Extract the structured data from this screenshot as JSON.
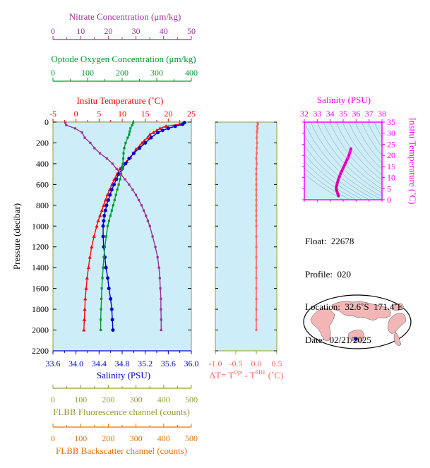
{
  "info": {
    "float_label": "Float:",
    "float_value": "22678",
    "profile_label": "Profile:",
    "profile_value": "020",
    "location_label": "Location:",
    "location_value": "32.6˚S  171.4˚E",
    "date_label": "Date:",
    "date_value": "02/21/2025"
  },
  "colors": {
    "temperature": "#ff0000",
    "salinity": "#0000cc",
    "oxygen": "#009933",
    "nitrate": "#993399",
    "fluorescence": "#999933",
    "backscatter": "#e67300",
    "delta_t": "#ff6666",
    "ts": "#ff00ff",
    "panel_bg": "#cdeef8"
  },
  "chart_data": [
    {
      "type": "line",
      "title": "",
      "ylabel": "Pressure (decibar)",
      "ylim": [
        2200,
        0
      ],
      "yticks": [
        0,
        200,
        400,
        600,
        800,
        1000,
        1200,
        1400,
        1600,
        1800,
        2000,
        2200
      ],
      "axes": {
        "nitrate": {
          "label": "Nitrate Concentration (μm/kg)",
          "range": [
            0,
            50
          ],
          "ticks": [
            0,
            10,
            20,
            30,
            40,
            50
          ]
        },
        "oxygen": {
          "label": "Optode Oxygen Concentration (μm/kg)",
          "range": [
            0,
            400
          ],
          "ticks": [
            0,
            100,
            200,
            300,
            400
          ]
        },
        "temperature": {
          "label": "Insitu Temperature (˚C)",
          "range": [
            -5,
            25
          ],
          "ticks": [
            -5,
            0,
            5,
            10,
            15,
            20,
            25
          ]
        },
        "salinity": {
          "label": "Salinity (PSU)",
          "range": [
            33.6,
            36.0
          ],
          "ticks": [
            "33.6",
            "34.0",
            "34.4",
            "34.8",
            "35.2",
            "35.6",
            "36.0"
          ]
        },
        "fluorescence": {
          "label": "FLBB Fluorescence channel (counts)",
          "range": [
            0,
            500
          ],
          "ticks": [
            0,
            100,
            200,
            300,
            400,
            500
          ]
        },
        "backscatter": {
          "label": "FLBB Backscatter channel (counts)",
          "range": [
            0,
            500
          ],
          "ticks": [
            0,
            100,
            200,
            300,
            400,
            500
          ]
        }
      },
      "series": [
        {
          "name": "Insitu Temperature",
          "axis": "temperature",
          "pressure": [
            5,
            20,
            40,
            60,
            80,
            100,
            120,
            150,
            180,
            200,
            230,
            260,
            300,
            340,
            380,
            400,
            450,
            500,
            550,
            600,
            650,
            700,
            750,
            800,
            850,
            900,
            950,
            1000,
            1100,
            1200,
            1300,
            1400,
            1500,
            1600,
            1700,
            1800,
            1900,
            2000
          ],
          "values": [
            23.5,
            22.5,
            19.5,
            18.2,
            17.5,
            16.8,
            16.0,
            15.5,
            14.8,
            14.3,
            13.8,
            13.0,
            12.5,
            11.8,
            11.0,
            10.3,
            9.5,
            8.9,
            8.3,
            7.8,
            7.3,
            6.8,
            6.4,
            6.0,
            5.6,
            5.2,
            4.8,
            4.5,
            3.9,
            3.4,
            3.0,
            2.7,
            2.4,
            2.2,
            2.0,
            1.9,
            1.8,
            1.7
          ]
        },
        {
          "name": "Salinity",
          "axis": "salinity",
          "pressure": [
            5,
            20,
            40,
            60,
            80,
            100,
            150,
            200,
            250,
            300,
            350,
            400,
            450,
            500,
            550,
            600,
            650,
            700,
            750,
            800,
            850,
            900,
            950,
            1000,
            1100,
            1200,
            1300,
            1400,
            1500,
            1600,
            1700,
            1800,
            1900,
            2000
          ],
          "values": [
            35.88,
            35.85,
            35.72,
            35.6,
            35.5,
            35.42,
            35.3,
            35.2,
            35.1,
            35.0,
            34.92,
            34.86,
            34.8,
            34.74,
            34.7,
            34.66,
            34.62,
            34.59,
            34.56,
            34.53,
            34.51,
            34.49,
            34.48,
            34.47,
            34.47,
            34.48,
            34.5,
            34.52,
            34.55,
            34.57,
            34.6,
            34.62,
            34.63,
            34.64
          ]
        },
        {
          "name": "Optode Oxygen",
          "axis": "oxygen",
          "pressure": [
            5,
            30,
            60,
            90,
            120,
            150,
            200,
            250,
            300,
            350,
            400,
            450,
            500,
            550,
            600,
            650,
            700,
            750,
            800,
            850,
            900,
            950,
            1000,
            1100,
            1200,
            1300,
            1400,
            1500,
            1600,
            1700,
            1800,
            1900,
            2000
          ],
          "values": [
            232,
            229,
            224,
            222,
            220,
            216,
            210,
            206,
            204,
            203,
            202,
            200,
            197,
            194,
            190,
            186,
            182,
            178,
            174,
            170,
            166,
            162,
            158,
            154,
            150,
            147,
            145,
            143,
            141,
            140,
            139,
            138,
            138
          ]
        },
        {
          "name": "Nitrate",
          "axis": "nitrate",
          "pressure": [
            5,
            30,
            60,
            100,
            150,
            200,
            250,
            300,
            350,
            400,
            450,
            500,
            550,
            600,
            650,
            700,
            750,
            800,
            850,
            900,
            950,
            1000,
            1100,
            1200,
            1300,
            1400,
            1500,
            1600,
            1700,
            1800,
            1900,
            2000
          ],
          "values": [
            4.5,
            4.8,
            8.0,
            10.5,
            11.5,
            13.5,
            15.0,
            17.0,
            19.5,
            21.5,
            23.0,
            24.5,
            26.0,
            27.5,
            28.8,
            30.0,
            31.0,
            32.0,
            32.8,
            33.6,
            34.3,
            35.0,
            36.0,
            37.0,
            37.8,
            38.3,
            38.6,
            38.8,
            39.0,
            39.0,
            39.1,
            39.1
          ]
        }
      ]
    },
    {
      "type": "line",
      "title": "",
      "xlabel": "ΔT= T",
      "xlabel_sup1": "Opt",
      "xlabel_mid": " - T",
      "xlabel_sup2": "SBE",
      "xlabel_unit": " (˚C)",
      "xlim": [
        -1.0,
        0.5
      ],
      "xticks": [
        "-1.0",
        "-0.5",
        "0.0",
        "0.5"
      ],
      "ylim": [
        2200,
        0
      ],
      "series": [
        {
          "name": "ΔT",
          "pressure": [
            5,
            20,
            40,
            60,
            80,
            100,
            150,
            200,
            250,
            300,
            350,
            400,
            450,
            500,
            550,
            600,
            650,
            700,
            750,
            800,
            850,
            900,
            950,
            1000,
            1100,
            1200,
            1300,
            1400,
            1500,
            1600,
            1700,
            1800,
            1900,
            2000
          ],
          "values": [
            0.03,
            0.04,
            0.02,
            0.03,
            0.02,
            0.02,
            0.01,
            0.02,
            0.01,
            0.01,
            0.0,
            0.01,
            0.0,
            0.0,
            0.0,
            0.0,
            0.0,
            0.0,
            0.0,
            0.0,
            0.0,
            0.0,
            0.0,
            0.0,
            0.0,
            0.0,
            0.0,
            0.0,
            0.0,
            0.0,
            0.0,
            0.0,
            0.0,
            0.0
          ]
        }
      ]
    },
    {
      "type": "scatter",
      "title": "",
      "xlabel": "Salinity (PSU)",
      "ylabel": "Insitu Temperature (˚C)",
      "xlim": [
        32,
        38
      ],
      "ylim": [
        0,
        35
      ],
      "xticks": [
        32,
        33,
        34,
        35,
        36,
        37,
        38
      ],
      "yticks": [
        0,
        5,
        10,
        15,
        20,
        25,
        30,
        35
      ],
      "series": [
        {
          "name": "T-S",
          "x": [
            34.64,
            34.62,
            34.6,
            34.56,
            34.52,
            34.48,
            34.47,
            34.48,
            34.52,
            34.56,
            34.62,
            34.7,
            34.8,
            34.9,
            35.0,
            35.1,
            35.2,
            35.3,
            35.45,
            35.6
          ],
          "y": [
            1.7,
            2.0,
            2.4,
            3.0,
            3.9,
            4.5,
            5.2,
            6.0,
            6.8,
            7.8,
            8.9,
            10.3,
            11.8,
            13.0,
            14.3,
            15.5,
            16.8,
            18.0,
            20.0,
            23.0
          ]
        }
      ]
    }
  ]
}
